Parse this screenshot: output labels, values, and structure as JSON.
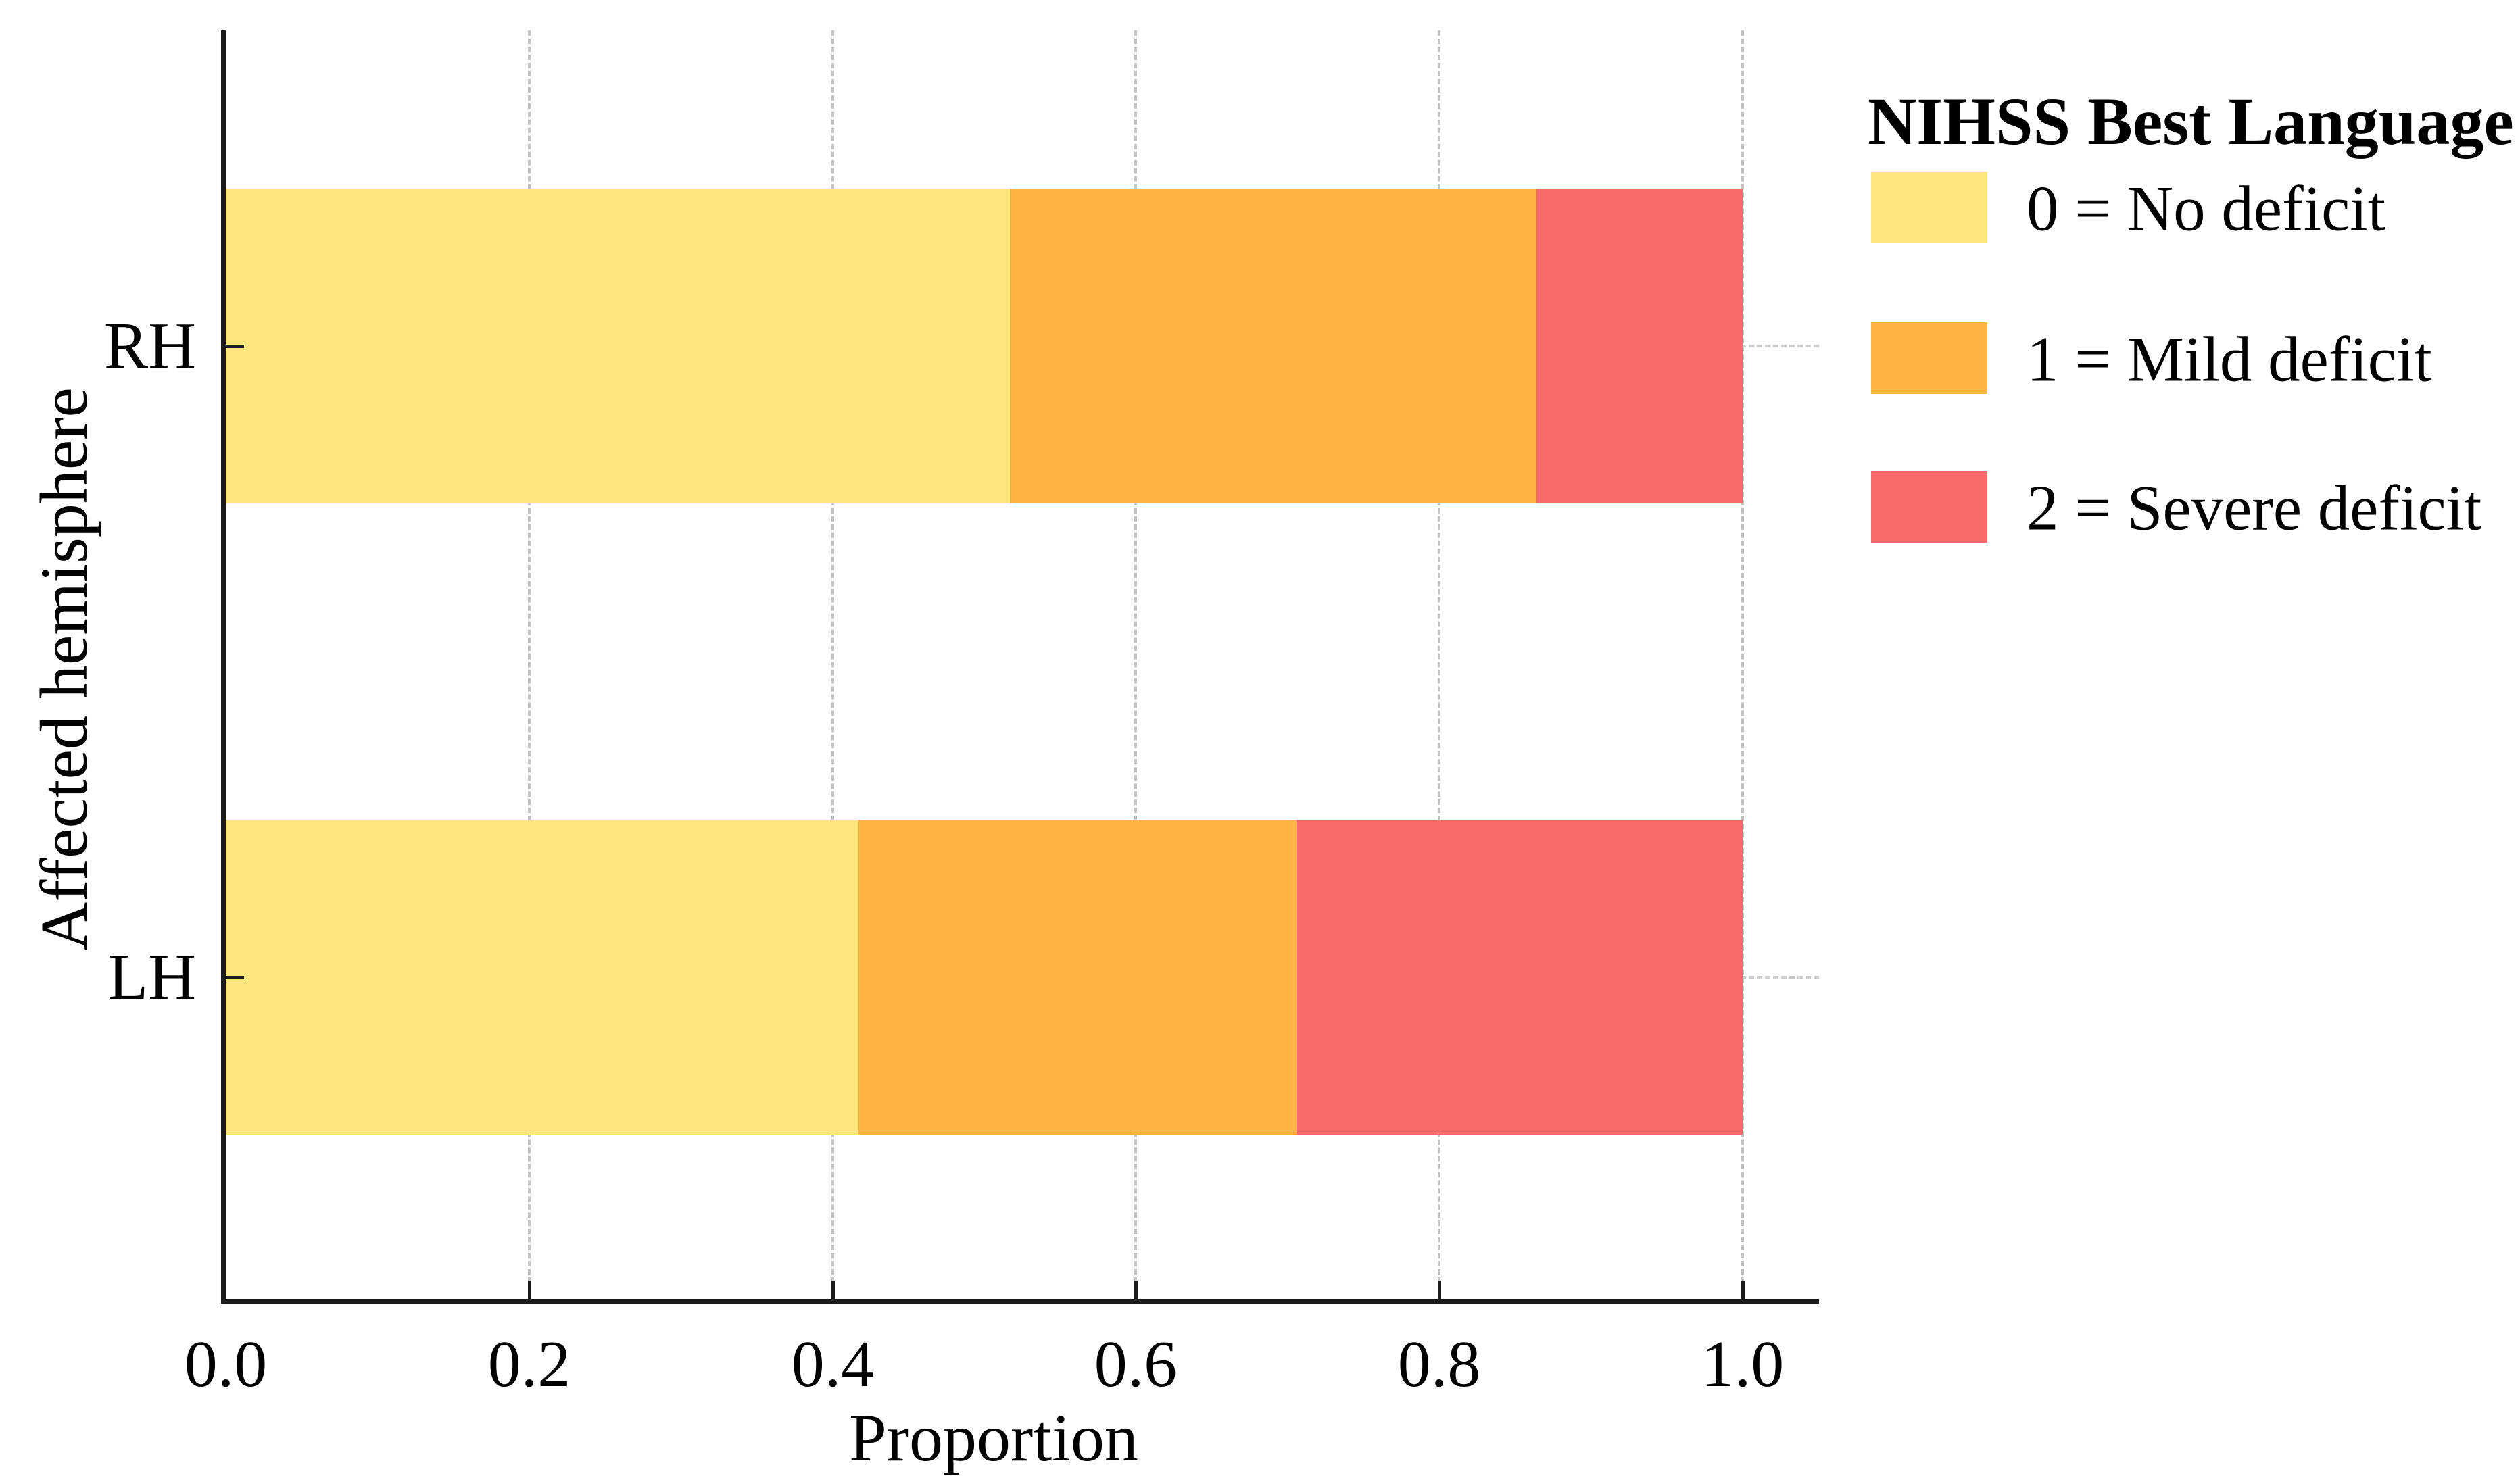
{
  "figure": {
    "background": "#ffffff",
    "text_color": "#000000",
    "spine_color": "#1c1c1c",
    "grid_color": "#bdbdbd"
  },
  "chart_data": {
    "type": "bar",
    "orientation": "horizontal",
    "stacked": true,
    "title": "",
    "xlabel": "Proportion",
    "ylabel": "Affected hemisphere",
    "categories": [
      "RH",
      "LH"
    ],
    "series": [
      {
        "name": "0 = No deficit",
        "color": "#FFE57D",
        "values": [
          0.517,
          0.417
        ]
      },
      {
        "name": "1 = Mild deficit",
        "color": "#FFB444",
        "values": [
          0.347,
          0.289
        ]
      },
      {
        "name": "2 = Severe deficit",
        "color": "#FB6A6A",
        "values": [
          0.136,
          0.294
        ]
      }
    ],
    "xlim": [
      0.0,
      1.0
    ],
    "xticks": [
      0.0,
      0.2,
      0.4,
      0.6,
      0.8,
      1.0
    ],
    "xtick_labels": [
      "0.0",
      "0.2",
      "0.4",
      "0.6",
      "0.8",
      "1.0"
    ],
    "grid": true,
    "legend": {
      "title": "NIHSS Best Language",
      "entries": [
        "0 = No deficit",
        "1 = Mild deficit",
        "2 = Severe deficit"
      ],
      "position": "upper-right-outside"
    }
  }
}
